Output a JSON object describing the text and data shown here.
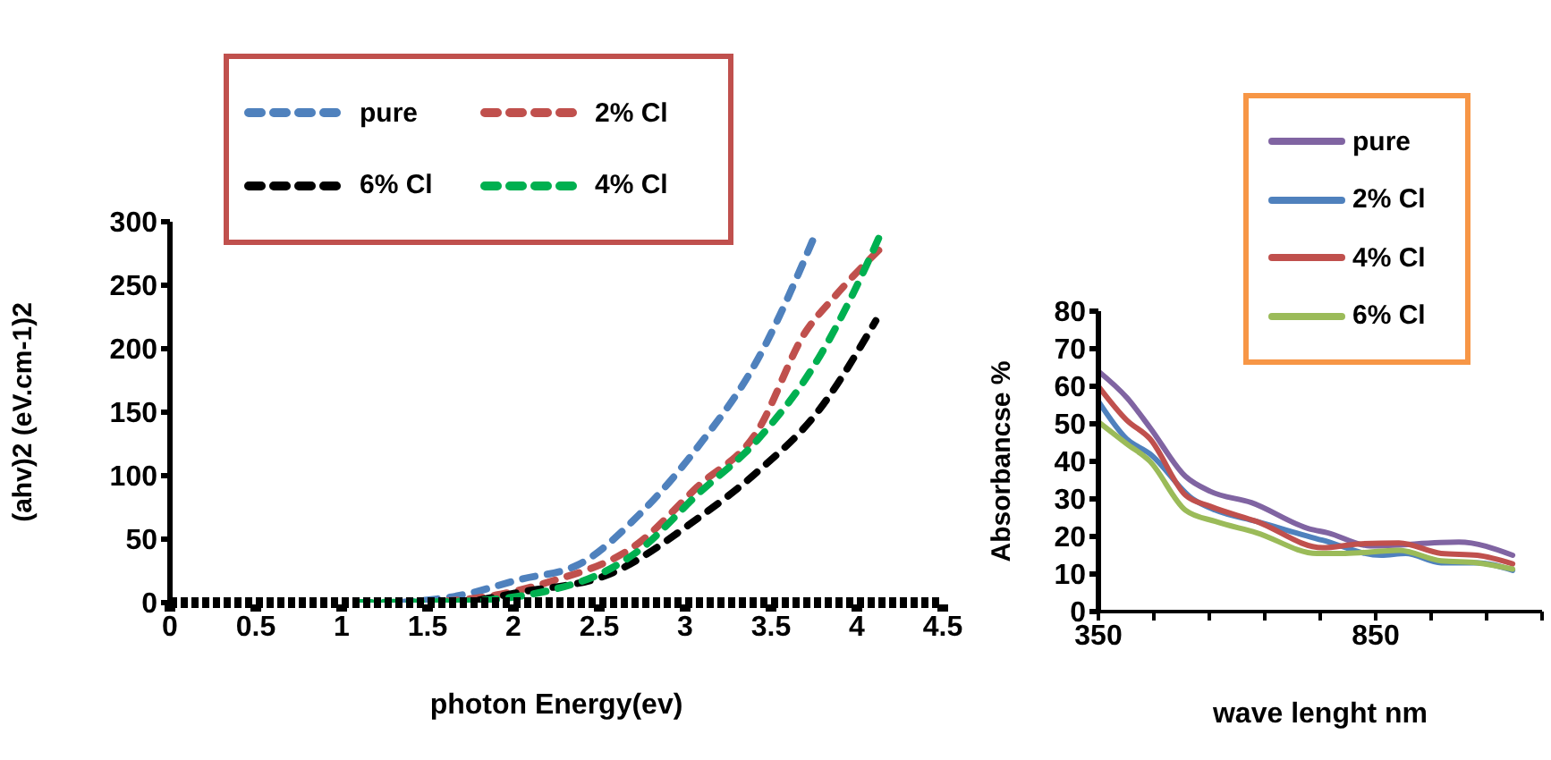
{
  "chart_data": [
    {
      "type": "line",
      "xlabel": "photon Energy(ev)",
      "ylabel": "(ahv)2  (eV.cm-1)2",
      "xlim": [
        0,
        4.5
      ],
      "xticks": [
        0,
        0.5,
        1,
        1.5,
        2,
        2.5,
        3,
        3.5,
        4,
        4.5
      ],
      "ylim": [
        0,
        300
      ],
      "yticks": [
        0,
        50,
        100,
        150,
        200,
        250,
        300
      ],
      "legend": "top left",
      "line_style": "dashed",
      "grid": false,
      "series": [
        {
          "name": "pure",
          "color": "#4f81bd",
          "x": [
            1.34,
            1.7,
            2.03,
            2.38,
            2.73,
            3.07,
            3.42,
            3.77
          ],
          "values": [
            0,
            6,
            18,
            30,
            69,
            122,
            191,
            294
          ]
        },
        {
          "name": "2% Cl",
          "color": "#c0504d",
          "x": [
            1.6,
            1.9,
            2.2,
            2.73,
            3.07,
            3.42,
            3.7,
            3.87,
            4.13
          ],
          "values": [
            1,
            6,
            16,
            47,
            91,
            135,
            213,
            241,
            278
          ]
        },
        {
          "name": "6% Cl",
          "color": "#000000",
          "x": [
            1.8,
            2.03,
            2.55,
            3.07,
            3.42,
            3.77,
            4.11
          ],
          "values": [
            2,
            8,
            22,
            66,
            103,
            150,
            222
          ]
        },
        {
          "name": "4% Cl",
          "color": "#00b050",
          "x": [
            1.1,
            1.69,
            2.38,
            2.73,
            3.07,
            3.42,
            3.77,
            3.98,
            4.13
          ],
          "values": [
            0,
            1,
            16,
            41,
            85,
            128,
            191,
            244,
            288
          ]
        }
      ]
    },
    {
      "type": "line",
      "xlabel": "wave lenght nm",
      "ylabel": "Absorbancse %",
      "xlim": [
        350,
        1150
      ],
      "xticks": [
        350,
        {
          "value": 450,
          "label": null
        },
        {
          "value": 550,
          "label": null
        },
        {
          "value": 650,
          "label": null
        },
        {
          "value": 750,
          "label": null
        },
        850,
        {
          "value": 950,
          "label": null
        },
        {
          "value": 1050,
          "label": null
        },
        {
          "value": 1150,
          "label": null
        }
      ],
      "ylim": [
        0,
        80
      ],
      "yticks": [
        0,
        10,
        20,
        30,
        40,
        50,
        60,
        70,
        80
      ],
      "legend": "top right",
      "line_style": "solid",
      "grid": false,
      "series": [
        {
          "name": "pure",
          "color": "#8064a2",
          "x": [
            350,
            401,
            443,
            507,
            552,
            626,
            731,
            763,
            840,
            1000,
            1097
          ],
          "values": [
            64,
            57,
            49,
            36,
            32,
            29,
            22,
            21,
            17.5,
            18.5,
            15
          ]
        },
        {
          "name": "2% Cl",
          "color": "#4f81bd",
          "x": [
            350,
            401,
            443,
            520,
            561,
            635,
            754,
            860,
            904,
            968,
            1033,
            1097
          ],
          "values": [
            56,
            46,
            42,
            30,
            27,
            24,
            19,
            15,
            15.5,
            13,
            13,
            11
          ]
        },
        {
          "name": "4% Cl",
          "color": "#c0504d",
          "x": [
            350,
            401,
            443,
            507,
            552,
            635,
            754,
            818,
            892,
            968,
            1033,
            1097
          ],
          "values": [
            60,
            51,
            46,
            31,
            28,
            24,
            17,
            18,
            18.3,
            15.5,
            15,
            12.7
          ]
        },
        {
          "name": "6% Cl",
          "color": "#9bbb59",
          "x": [
            350,
            401,
            443,
            507,
            561,
            635,
            744,
            795,
            892,
            968,
            1033,
            1097
          ],
          "values": [
            50.5,
            44.7,
            40,
            27,
            24,
            21,
            15.5,
            15.5,
            16.3,
            13.5,
            13,
            11.3
          ]
        }
      ]
    }
  ]
}
